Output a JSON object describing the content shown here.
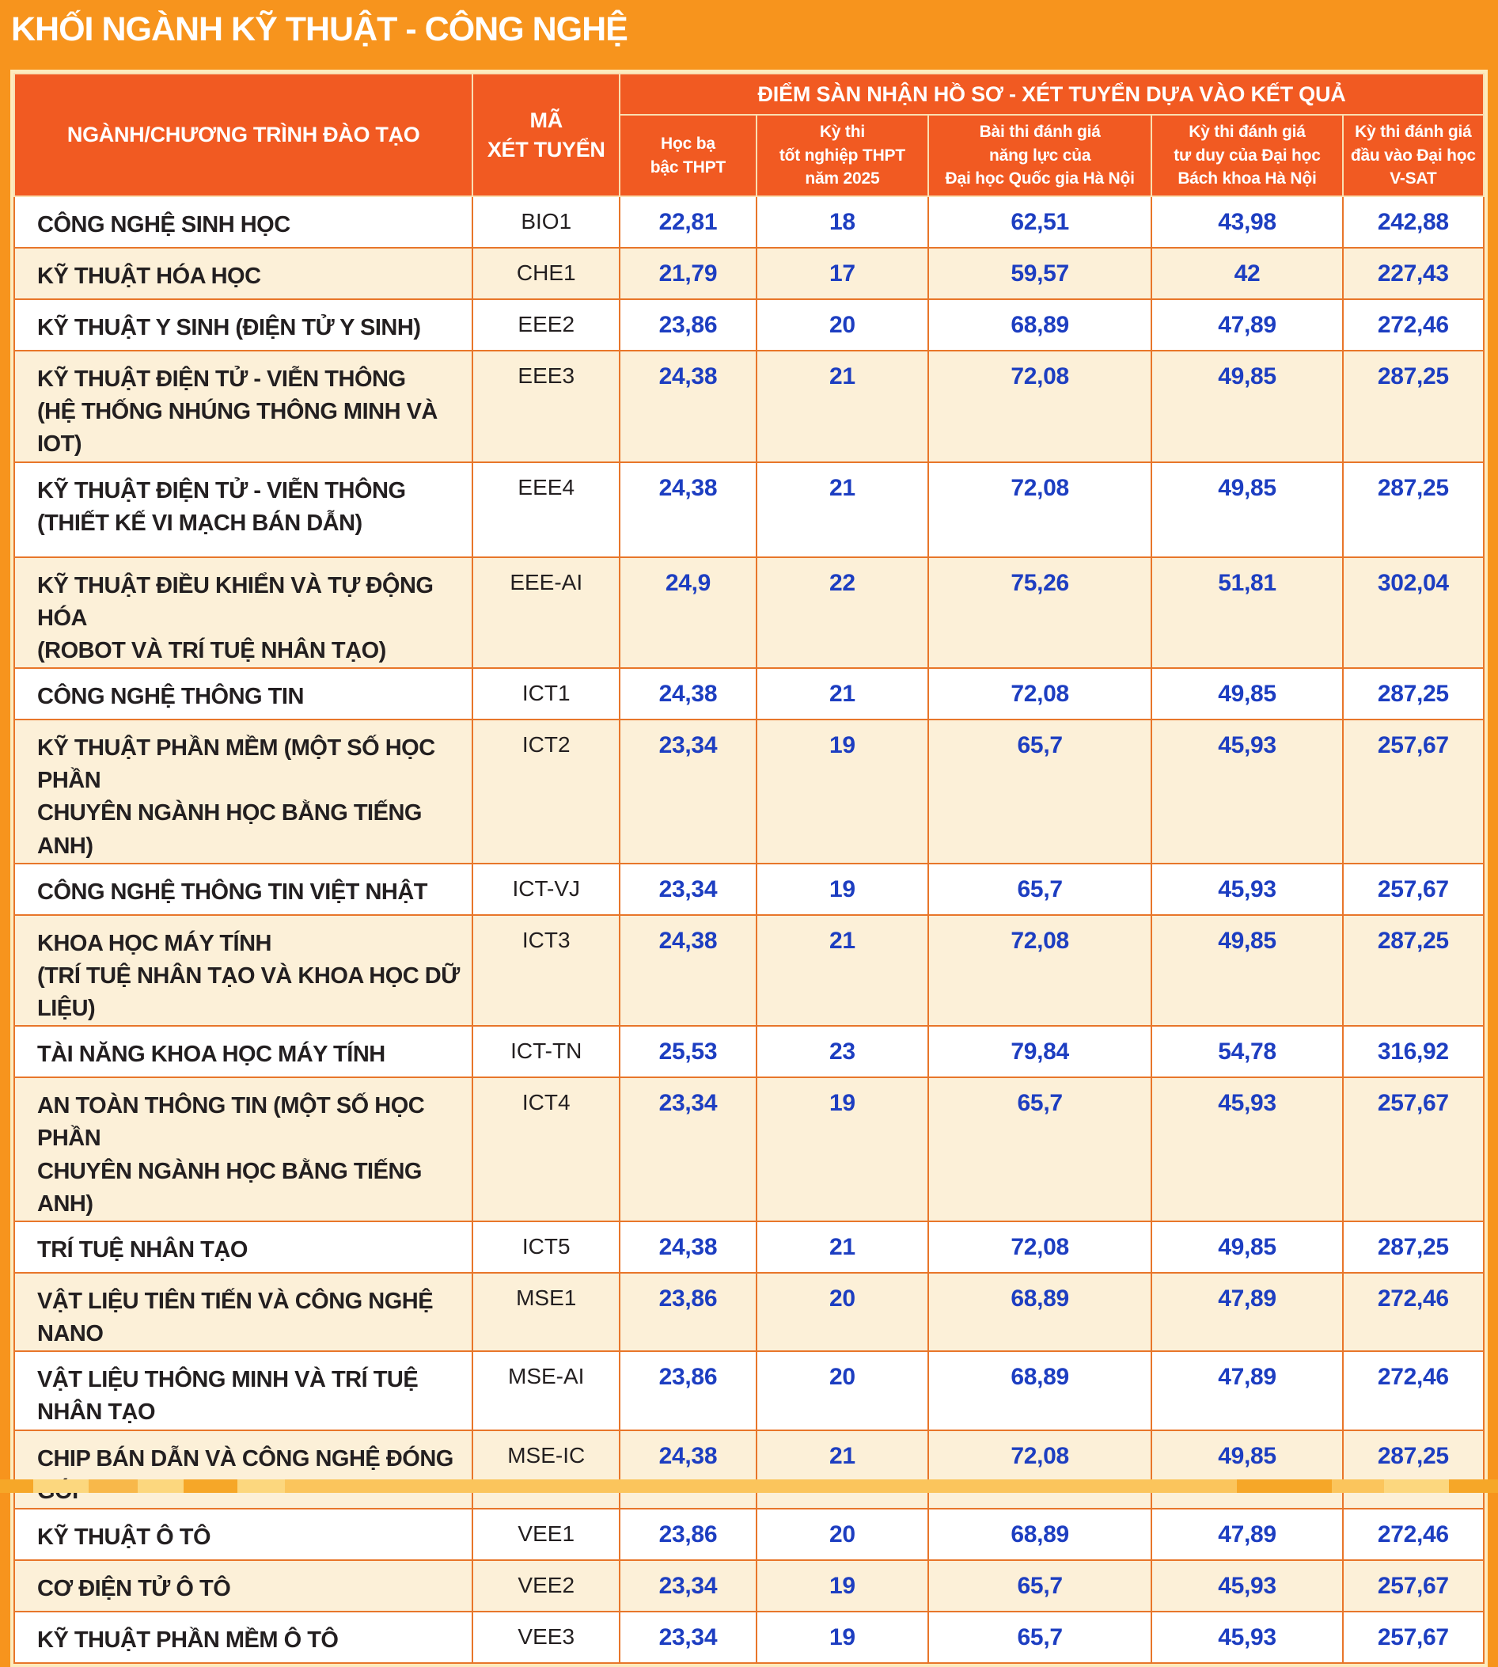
{
  "page": {
    "title": "KHỐI NGÀNH KỸ THUẬT - CÔNG NGHỆ"
  },
  "colors": {
    "page_bg": "#F7941D",
    "header_bg": "#F15A22",
    "row_alt": "#FCF0D8",
    "row_white": "#FFFFFF",
    "value_blue": "#1D3EC1",
    "ink": "#231F20",
    "grid": "#E8762A",
    "outer_border": "#FDEBBE",
    "header_line": "#F9DFB2"
  },
  "table": {
    "program_header": "NGÀNH/CHƯƠNG TRÌNH ĐÀO TẠO",
    "code_header": "MÃ\nXÉT TUYỂN",
    "group_header": "ĐIỂM SÀN NHẬN HỒ SƠ - XÉT TUYỂN DỰA VÀO KẾT QUẢ",
    "score_headers": [
      "Học bạ\nbậc THPT",
      "Kỳ thi\ntốt nghiệp THPT\nnăm 2025",
      "Bài thi đánh giá\nnăng lực của\nĐại học Quốc gia Hà Nội",
      "Kỳ thi đánh giá\ntư duy của Đại học\nBách khoa Hà Nội",
      "Kỳ thi đánh giá\nđầu vào Đại học\nV-SAT"
    ]
  },
  "chart_data": {
    "type": "table",
    "title": "KHỐI NGÀNH KỸ THUẬT - CÔNG NGHỆ",
    "subtitle": "ĐIỂM SÀN NHẬN HỒ SƠ - XÉT TUYỂN DỰA VÀO KẾT QUẢ",
    "columns": [
      "NGÀNH/CHƯƠNG TRÌNH ĐÀO TẠO",
      "MÃ XÉT TUYỂN",
      "Học bạ bậc THPT",
      "Kỳ thi tốt nghiệp THPT năm 2025",
      "Bài thi đánh giá năng lực của Đại học Quốc gia Hà Nội",
      "Kỳ thi đánh giá tư duy của Đại học Bách khoa Hà Nội",
      "Kỳ thi đánh giá đầu vào Đại học V-SAT"
    ],
    "rows": [
      {
        "program": "CÔNG NGHỆ SINH HỌC",
        "code": "BIO1",
        "scores": [
          "22,81",
          "18",
          "62,51",
          "43,98",
          "242,88"
        ]
      },
      {
        "program": "KỸ THUẬT HÓA HỌC",
        "code": "CHE1",
        "scores": [
          "21,79",
          "17",
          "59,57",
          "42",
          "227,43"
        ]
      },
      {
        "program": "KỸ THUẬT Y SINH (ĐIỆN TỬ Y SINH)",
        "code": "EEE2",
        "scores": [
          "23,86",
          "20",
          "68,89",
          "47,89",
          "272,46"
        ]
      },
      {
        "program": "KỸ THUẬT ĐIỆN TỬ - VIỄN THÔNG\n(HỆ THỐNG NHÚNG THÔNG MINH VÀ IOT)",
        "code": "EEE3",
        "scores": [
          "24,38",
          "21",
          "72,08",
          "49,85",
          "287,25"
        ]
      },
      {
        "program": "KỸ THUẬT ĐIỆN TỬ - VIỄN THÔNG\n(THIẾT KẾ VI MẠCH BÁN DẪN)",
        "code": "EEE4",
        "scores": [
          "24,38",
          "21",
          "72,08",
          "49,85",
          "287,25"
        ]
      },
      {
        "program": "KỸ THUẬT ĐIỀU KHIỂN VÀ TỰ ĐỘNG HÓA\n(ROBOT VÀ TRÍ TUỆ NHÂN TẠO)",
        "code": "EEE-AI",
        "scores": [
          "24,9",
          "22",
          "75,26",
          "51,81",
          "302,04"
        ]
      },
      {
        "program": "CÔNG NGHỆ THÔNG TIN",
        "code": "ICT1",
        "scores": [
          "24,38",
          "21",
          "72,08",
          "49,85",
          "287,25"
        ]
      },
      {
        "program": "KỸ THUẬT PHẦN MỀM (MỘT SỐ HỌC PHẦN\nCHUYÊN NGÀNH HỌC BẰNG TIẾNG ANH)",
        "code": "ICT2",
        "scores": [
          "23,34",
          "19",
          "65,7",
          "45,93",
          "257,67"
        ]
      },
      {
        "program": "CÔNG NGHỆ THÔNG TIN VIỆT NHẬT",
        "code": "ICT-VJ",
        "scores": [
          "23,34",
          "19",
          "65,7",
          "45,93",
          "257,67"
        ]
      },
      {
        "program": "KHOA HỌC MÁY TÍNH\n(TRÍ TUỆ NHÂN TẠO VÀ KHOA HỌC DỮ LIỆU)",
        "code": "ICT3",
        "scores": [
          "24,38",
          "21",
          "72,08",
          "49,85",
          "287,25"
        ]
      },
      {
        "program": "TÀI NĂNG KHOA HỌC MÁY TÍNH",
        "code": "ICT-TN",
        "scores": [
          "25,53",
          "23",
          "79,84",
          "54,78",
          "316,92"
        ]
      },
      {
        "program": "AN TOÀN THÔNG TIN (MỘT SỐ HỌC PHẦN\nCHUYÊN NGÀNH HỌC BẰNG TIẾNG ANH)",
        "code": "ICT4",
        "scores": [
          "23,34",
          "19",
          "65,7",
          "45,93",
          "257,67"
        ]
      },
      {
        "program": "TRÍ TUỆ NHÂN TẠO",
        "code": "ICT5",
        "scores": [
          "24,38",
          "21",
          "72,08",
          "49,85",
          "287,25"
        ]
      },
      {
        "program": "VẬT LIỆU TIÊN TIẾN VÀ CÔNG NGHỆ NANO",
        "code": "MSE1",
        "scores": [
          "23,86",
          "20",
          "68,89",
          "47,89",
          "272,46"
        ]
      },
      {
        "program": "VẬT LIỆU THÔNG MINH VÀ TRÍ TUỆ NHÂN TẠO",
        "code": "MSE-AI",
        "scores": [
          "23,86",
          "20",
          "68,89",
          "47,89",
          "272,46"
        ]
      },
      {
        "program": "CHIP BÁN DẪN VÀ CÔNG NGHỆ ĐÓNG GÓI",
        "code": "MSE-IC",
        "scores": [
          "24,38",
          "21",
          "72,08",
          "49,85",
          "287,25"
        ]
      },
      {
        "program": "KỸ THUẬT Ô TÔ",
        "code": "VEE1",
        "scores": [
          "23,86",
          "20",
          "68,89",
          "47,89",
          "272,46"
        ]
      },
      {
        "program": "CƠ ĐIỆN TỬ Ô TÔ",
        "code": "VEE2",
        "scores": [
          "23,34",
          "19",
          "65,7",
          "45,93",
          "257,67"
        ]
      },
      {
        "program": "KỸ THUẬT PHẦN MỀM Ô TÔ",
        "code": "VEE3",
        "scores": [
          "23,34",
          "19",
          "65,7",
          "45,93",
          "257,67"
        ]
      }
    ]
  }
}
